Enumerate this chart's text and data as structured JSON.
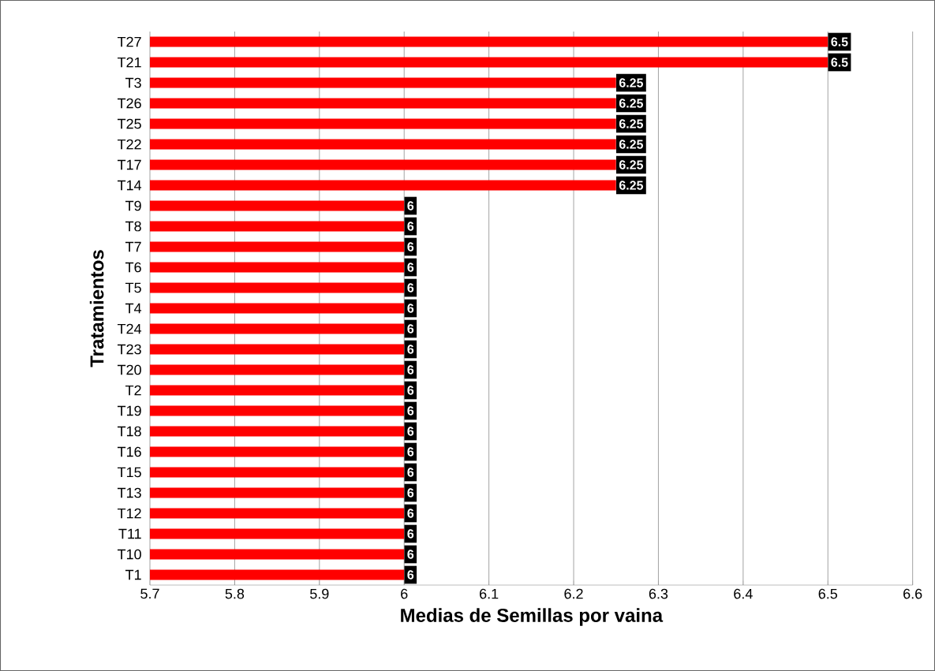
{
  "chart_data": {
    "type": "bar",
    "orientation": "horizontal",
    "xlabel": "Medias de Semillas por vaina",
    "ylabel": "Tratamientos",
    "categories": [
      "T27",
      "T21",
      "T3",
      "T26",
      "T25",
      "T22",
      "T17",
      "T14",
      "T9",
      "T8",
      "T7",
      "T6",
      "T5",
      "T4",
      "T24",
      "T23",
      "T20",
      "T2",
      "T19",
      "T18",
      "T16",
      "T15",
      "T13",
      "T12",
      "T11",
      "T10",
      "T1"
    ],
    "values": [
      6.5,
      6.5,
      6.25,
      6.25,
      6.25,
      6.25,
      6.25,
      6.25,
      6,
      6,
      6,
      6,
      6,
      6,
      6,
      6,
      6,
      6,
      6,
      6,
      6,
      6,
      6,
      6,
      6,
      6,
      6
    ],
    "color": "#ff0000",
    "xlim": [
      5.7,
      6.6
    ],
    "xticks": [
      5.7,
      5.8,
      5.9,
      6,
      6.1,
      6.2,
      6.3,
      6.4,
      6.5,
      6.6
    ],
    "grid": "x",
    "data_labels": true
  }
}
